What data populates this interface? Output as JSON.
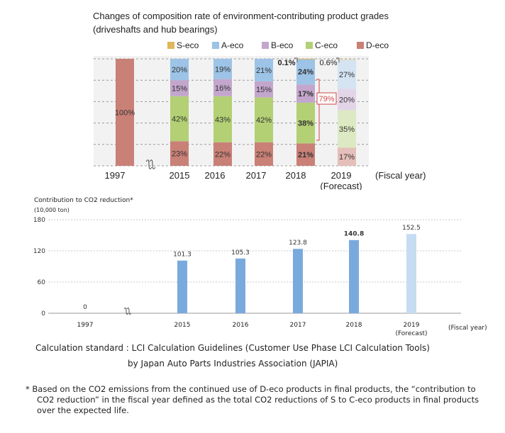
{
  "chart_data": [
    {
      "type": "bar",
      "stacked": true,
      "title": "Changes of composition rate of environment-contributing product grades",
      "subtitle": "(driveshafts and hub bearings)",
      "xlabel": "(Fiscal year)",
      "categories": [
        "1997",
        "2015",
        "2016",
        "2017",
        "2018",
        "2019"
      ],
      "category_sublabels": {
        "2019": "(Forecast)"
      },
      "legend": [
        {
          "name": "S-eco",
          "color": "#e0b75a"
        },
        {
          "name": "A-eco",
          "color": "#9dc3e6"
        },
        {
          "name": "B-eco",
          "color": "#c3a6cc"
        },
        {
          "name": "C-eco",
          "color": "#b3d074"
        },
        {
          "name": "D-eco",
          "color": "#c98077"
        }
      ],
      "forecast_colors": {
        "S-eco": "#f0dcaa",
        "A-eco": "#d4e4f3",
        "B-eco": "#e3d5e8",
        "C-eco": "#dde9c2",
        "D-eco": "#e5bfb9"
      },
      "series": [
        {
          "name": "D-eco",
          "values": [
            100,
            23,
            22,
            22,
            21,
            17
          ],
          "labels": [
            "100%",
            "23%",
            "22%",
            "22%",
            "21%",
            "17%"
          ]
        },
        {
          "name": "C-eco",
          "values": [
            0,
            42,
            43,
            42,
            38,
            35
          ],
          "labels": [
            "",
            "42%",
            "43%",
            "42%",
            "38%",
            "35%"
          ]
        },
        {
          "name": "B-eco",
          "values": [
            0,
            15,
            16,
            15,
            17,
            20
          ],
          "labels": [
            "",
            "15%",
            "16%",
            "15%",
            "17%",
            "20%"
          ]
        },
        {
          "name": "A-eco",
          "values": [
            0,
            20,
            19,
            21,
            24,
            27
          ],
          "labels": [
            "",
            "20%",
            "19%",
            "21%",
            "24%",
            "27%"
          ]
        },
        {
          "name": "S-eco",
          "values": [
            0,
            0,
            0,
            0,
            0.1,
            0.6
          ],
          "labels": [
            "",
            "",
            "",
            "",
            "0.1%",
            "0.6%"
          ]
        }
      ],
      "annotations": [
        {
          "category": "2018",
          "text": "79%",
          "note": "S to C-eco total"
        }
      ],
      "ylim": [
        0,
        100
      ],
      "grid": true,
      "axis_break_after": "1997",
      "legend_position": "top"
    },
    {
      "type": "bar",
      "title": "Contribution to CO2 reduction*",
      "unit": "(10,000  ton)",
      "xlabel": "(Fiscal year)",
      "categories": [
        "1997",
        "2015",
        "2016",
        "2017",
        "2018",
        "2019"
      ],
      "category_sublabels": {
        "2019": "(Forecast)"
      },
      "values": [
        0,
        101.3,
        105.3,
        123.8,
        140.8,
        152.5
      ],
      "labels": [
        "0",
        "101.3",
        "105.3",
        "123.8",
        "140.8",
        "152.5"
      ],
      "yticks": [
        "0",
        "60",
        "120",
        "180"
      ],
      "ylim": [
        0,
        180
      ],
      "bar_color": "#7aa9dd",
      "forecast_color": "#c6dcf2",
      "grid": true,
      "axis_break_after": "1997"
    }
  ],
  "notes": {
    "calc_line1": "Calculation standard : LCI Calculation Guidelines (Customer Use Phase LCI Calculation Tools)",
    "calc_line2": "by Japan Auto Parts Industries Association (JAPIA)",
    "footnote_line1": "* Based on the CO2 emissions from the continued use of D-eco products in final products, the “contribution to",
    "footnote_line2": "CO2 reduction” in the fiscal year defined as the total CO2 reductions of S to C-eco products in final products over the expected life."
  }
}
